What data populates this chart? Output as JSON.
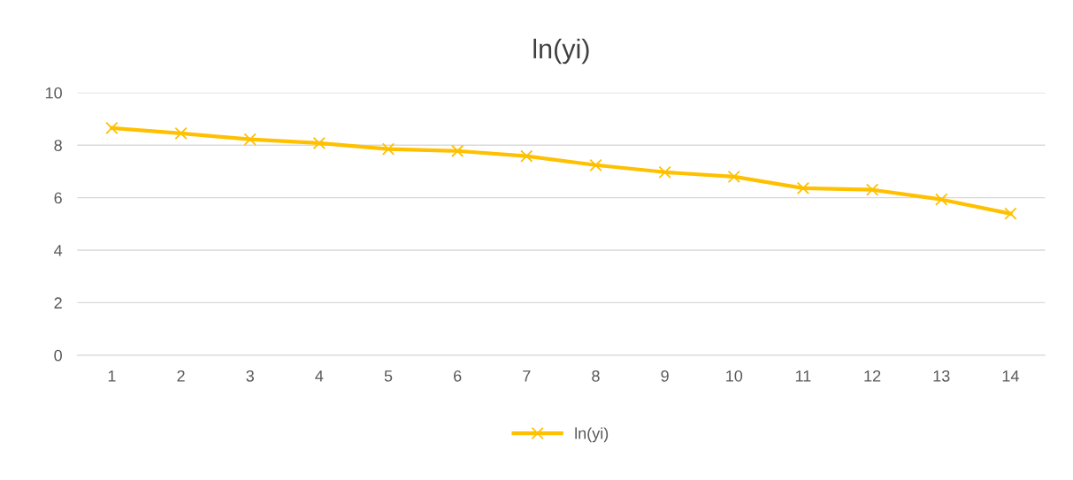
{
  "chart_data": {
    "type": "line",
    "title": "ln(yi)",
    "categories": [
      "1",
      "2",
      "3",
      "4",
      "5",
      "6",
      "7",
      "8",
      "9",
      "10",
      "11",
      "12",
      "13",
      "14"
    ],
    "series": [
      {
        "name": "ln(yi)",
        "color": "#ffc000",
        "values": [
          8.65,
          8.45,
          8.22,
          8.08,
          7.85,
          7.78,
          7.58,
          7.24,
          6.97,
          6.8,
          6.36,
          6.3,
          5.93,
          5.39
        ]
      }
    ],
    "ylim": [
      0,
      10
    ],
    "yticks": [
      0,
      2,
      4,
      6,
      8,
      10
    ],
    "grid": "y",
    "legend": "bottom",
    "marker": "cross",
    "line_style": "solid"
  }
}
